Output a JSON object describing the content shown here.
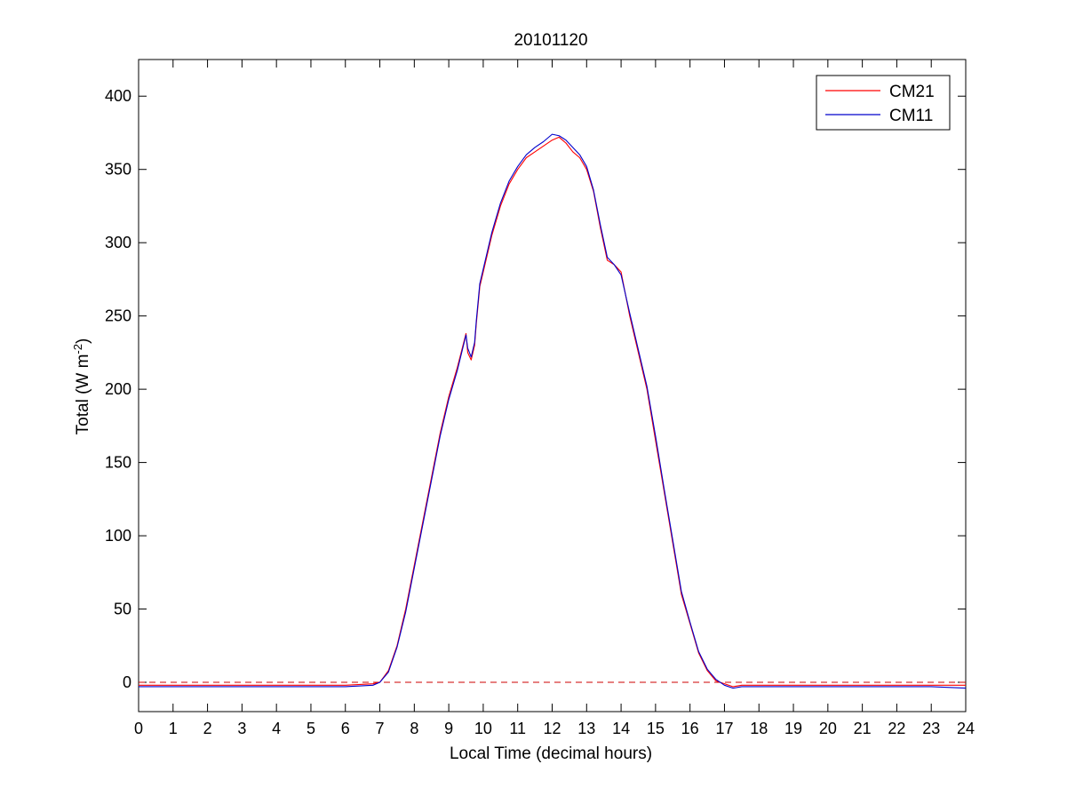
{
  "chart_data": {
    "type": "line",
    "title": "20101120",
    "xlabel": "Local Time (decimal hours)",
    "ylabel": {
      "prefix": "Total (W m",
      "superscript": "-2",
      "suffix": ")"
    },
    "xlim": [
      0,
      24
    ],
    "ylim": [
      -20,
      425
    ],
    "x_ticks": [
      0,
      1,
      2,
      3,
      4,
      5,
      6,
      7,
      8,
      9,
      10,
      11,
      12,
      13,
      14,
      15,
      16,
      17,
      18,
      19,
      20,
      21,
      22,
      23,
      24
    ],
    "y_ticks": [
      0,
      50,
      100,
      150,
      200,
      250,
      300,
      350,
      400
    ],
    "grid": false,
    "legend_position": "top-right",
    "reference_line": {
      "y": 0,
      "style": "dashed",
      "color": "#cc0000"
    },
    "series": [
      {
        "name": "CM21",
        "color": "#ff0000",
        "x": [
          0,
          1,
          2,
          3,
          4,
          5,
          6,
          6.8,
          7.0,
          7.25,
          7.5,
          7.75,
          8.0,
          8.25,
          8.5,
          8.75,
          9.0,
          9.25,
          9.5,
          9.55,
          9.65,
          9.75,
          9.8,
          9.9,
          10.0,
          10.1,
          10.25,
          10.5,
          10.75,
          11.0,
          11.25,
          11.5,
          11.75,
          12.0,
          12.2,
          12.4,
          12.6,
          12.8,
          13.0,
          13.2,
          13.4,
          13.6,
          13.8,
          14.0,
          14.25,
          14.5,
          14.75,
          15.0,
          15.25,
          15.5,
          15.75,
          16.0,
          16.25,
          16.5,
          16.75,
          17.0,
          17.25,
          17.5,
          18,
          19,
          20,
          21,
          22,
          23,
          24
        ],
        "y": [
          -2,
          -2,
          -2,
          -2,
          -2,
          -2,
          -2,
          -1,
          0,
          8,
          25,
          50,
          80,
          110,
          140,
          170,
          195,
          215,
          238,
          225,
          220,
          230,
          245,
          270,
          280,
          290,
          305,
          325,
          340,
          350,
          358,
          362,
          366,
          370,
          372,
          368,
          362,
          358,
          350,
          335,
          310,
          288,
          285,
          280,
          250,
          225,
          200,
          165,
          130,
          95,
          60,
          40,
          20,
          8,
          1,
          -1,
          -3,
          -2,
          -2,
          -2,
          -2,
          -2,
          -2,
          -2,
          -2
        ]
      },
      {
        "name": "CM11",
        "color": "#0000cc",
        "x": [
          0,
          1,
          2,
          3,
          4,
          5,
          6,
          6.8,
          7.0,
          7.25,
          7.5,
          7.75,
          8.0,
          8.25,
          8.5,
          8.75,
          9.0,
          9.25,
          9.5,
          9.55,
          9.65,
          9.75,
          9.8,
          9.9,
          10.0,
          10.1,
          10.25,
          10.5,
          10.75,
          11.0,
          11.25,
          11.5,
          11.75,
          12.0,
          12.2,
          12.4,
          12.6,
          12.8,
          13.0,
          13.2,
          13.4,
          13.6,
          13.8,
          14.0,
          14.25,
          14.5,
          14.75,
          15.0,
          15.25,
          15.5,
          15.75,
          16.0,
          16.25,
          16.5,
          16.75,
          17.0,
          17.25,
          17.5,
          18,
          19,
          20,
          21,
          22,
          23,
          24
        ],
        "y": [
          -3,
          -3,
          -3,
          -3,
          -3,
          -3,
          -3,
          -2,
          0,
          7,
          24,
          48,
          78,
          108,
          138,
          168,
          193,
          213,
          237,
          228,
          222,
          232,
          247,
          272,
          282,
          292,
          307,
          327,
          342,
          352,
          360,
          365,
          369,
          374,
          373,
          370,
          365,
          360,
          352,
          336,
          312,
          290,
          285,
          278,
          252,
          227,
          202,
          168,
          132,
          97,
          62,
          41,
          21,
          9,
          2,
          -2,
          -4,
          -3,
          -3,
          -3,
          -3,
          -3,
          -3,
          -3,
          -4
        ]
      }
    ]
  }
}
